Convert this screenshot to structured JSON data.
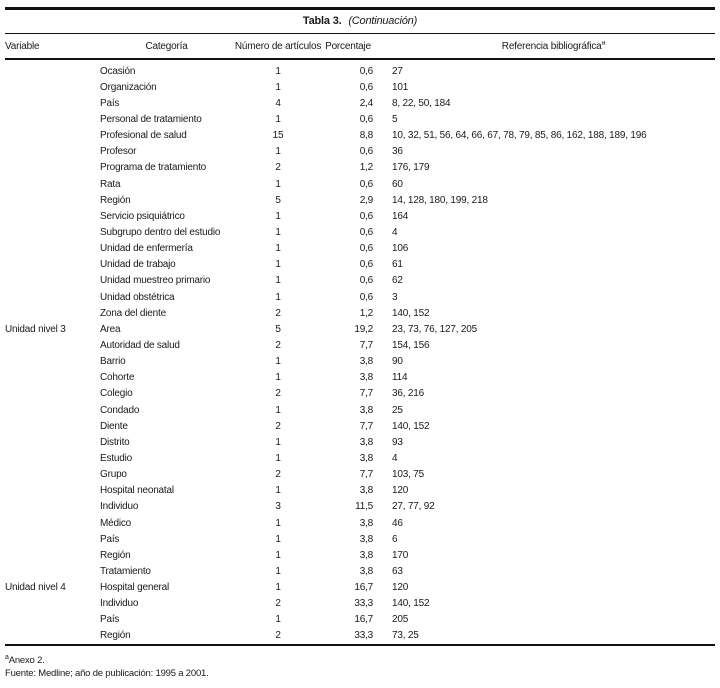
{
  "page": {
    "background": "#ffffff",
    "text_color": "#1a1a1a",
    "rule_color": "#111111"
  },
  "table": {
    "title_bold": "Tabla 3.",
    "title_italic": "(Continuación)",
    "columns": [
      "Variable",
      "Categoría",
      "Número de artículos",
      "Porcentaje",
      "Referencia bibliográfica"
    ],
    "reference_note_mark": "a",
    "rows": [
      {
        "variable": "",
        "categoria": "Ocasión",
        "articulos": "1",
        "porcentaje": "0,6",
        "referencias": "27"
      },
      {
        "variable": "",
        "categoria": "Organización",
        "articulos": "1",
        "porcentaje": "0,6",
        "referencias": "101"
      },
      {
        "variable": "",
        "categoria": "País",
        "articulos": "4",
        "porcentaje": "2,4",
        "referencias": "8, 22, 50, 184"
      },
      {
        "variable": "",
        "categoria": "Personal de tratamiento",
        "articulos": "1",
        "porcentaje": "0,6",
        "referencias": "5"
      },
      {
        "variable": "",
        "categoria": "Profesional de salud",
        "articulos": "15",
        "porcentaje": "8,8",
        "referencias": "10, 32, 51, 56, 64, 66, 67, 78, 79, 85, 86, 162, 188, 189, 196"
      },
      {
        "variable": "",
        "categoria": "Profesor",
        "articulos": "1",
        "porcentaje": "0,6",
        "referencias": "36"
      },
      {
        "variable": "",
        "categoria": "Programa de tratamiento",
        "articulos": "2",
        "porcentaje": "1,2",
        "referencias": "176, 179"
      },
      {
        "variable": "",
        "categoria": "Rata",
        "articulos": "1",
        "porcentaje": "0,6",
        "referencias": "60"
      },
      {
        "variable": "",
        "categoria": "Región",
        "articulos": "5",
        "porcentaje": "2,9",
        "referencias": "14, 128, 180, 199, 218"
      },
      {
        "variable": "",
        "categoria": "Servicio psiquiátrico",
        "articulos": "1",
        "porcentaje": "0,6",
        "referencias": "164"
      },
      {
        "variable": "",
        "categoria": "Subgrupo dentro del estudio",
        "articulos": "1",
        "porcentaje": "0,6",
        "referencias": "4"
      },
      {
        "variable": "",
        "categoria": "Unidad de enfermería",
        "articulos": "1",
        "porcentaje": "0,6",
        "referencias": "106"
      },
      {
        "variable": "",
        "categoria": "Unidad de trabajo",
        "articulos": "1",
        "porcentaje": "0,6",
        "referencias": "61"
      },
      {
        "variable": "",
        "categoria": "Unidad muestreo primario",
        "articulos": "1",
        "porcentaje": "0,6",
        "referencias": "62"
      },
      {
        "variable": "",
        "categoria": "Unidad obstétrica",
        "articulos": "1",
        "porcentaje": "0,6",
        "referencias": "3"
      },
      {
        "variable": "",
        "categoria": "Zona del diente",
        "articulos": "2",
        "porcentaje": "1,2",
        "referencias": "140, 152"
      },
      {
        "variable": "Unidad nivel 3",
        "categoria": "Área",
        "articulos": "5",
        "porcentaje": "19,2",
        "referencias": "23, 73, 76, 127, 205"
      },
      {
        "variable": "",
        "categoria": "Autoridad de salud",
        "articulos": "2",
        "porcentaje": "7,7",
        "referencias": "154, 156"
      },
      {
        "variable": "",
        "categoria": "Barrio",
        "articulos": "1",
        "porcentaje": "3,8",
        "referencias": "90"
      },
      {
        "variable": "",
        "categoria": "Cohorte",
        "articulos": "1",
        "porcentaje": "3,8",
        "referencias": "114"
      },
      {
        "variable": "",
        "categoria": "Colegio",
        "articulos": "2",
        "porcentaje": "7,7",
        "referencias": "36, 216"
      },
      {
        "variable": "",
        "categoria": "Condado",
        "articulos": "1",
        "porcentaje": "3,8",
        "referencias": "25"
      },
      {
        "variable": "",
        "categoria": "Diente",
        "articulos": "2",
        "porcentaje": "7,7",
        "referencias": "140, 152"
      },
      {
        "variable": "",
        "categoria": "Distrito",
        "articulos": "1",
        "porcentaje": "3,8",
        "referencias": "93"
      },
      {
        "variable": "",
        "categoria": "Estudio",
        "articulos": "1",
        "porcentaje": "3,8",
        "referencias": "4"
      },
      {
        "variable": "",
        "categoria": "Grupo",
        "articulos": "2",
        "porcentaje": "7,7",
        "referencias": "103, 75"
      },
      {
        "variable": "",
        "categoria": "Hospital neonatal",
        "articulos": "1",
        "porcentaje": "3,8",
        "referencias": "120"
      },
      {
        "variable": "",
        "categoria": "Individuo",
        "articulos": "3",
        "porcentaje": "11,5",
        "referencias": "27, 77, 92"
      },
      {
        "variable": "",
        "categoria": "Médico",
        "articulos": "1",
        "porcentaje": "3,8",
        "referencias": "46"
      },
      {
        "variable": "",
        "categoria": "País",
        "articulos": "1",
        "porcentaje": "3,8",
        "referencias": "6"
      },
      {
        "variable": "",
        "categoria": "Región",
        "articulos": "1",
        "porcentaje": "3,8",
        "referencias": "170"
      },
      {
        "variable": "",
        "categoria": "Tratamiento",
        "articulos": "1",
        "porcentaje": "3,8",
        "referencias": "63"
      },
      {
        "variable": "Unidad nivel 4",
        "categoria": "Hospital general",
        "articulos": "1",
        "porcentaje": "16,7",
        "referencias": "120"
      },
      {
        "variable": "",
        "categoria": "Individuo",
        "articulos": "2",
        "porcentaje": "33,3",
        "referencias": "140, 152"
      },
      {
        "variable": "",
        "categoria": "País",
        "articulos": "1",
        "porcentaje": "16,7",
        "referencias": "205"
      },
      {
        "variable": "",
        "categoria": "Región",
        "articulos": "2",
        "porcentaje": "33,3",
        "referencias": "73, 25"
      }
    ],
    "footnotes": {
      "mark": "a",
      "anexo": "Anexo 2.",
      "fuente": "Fuente: Medline; año de publicación: 1995 a 2001."
    }
  }
}
